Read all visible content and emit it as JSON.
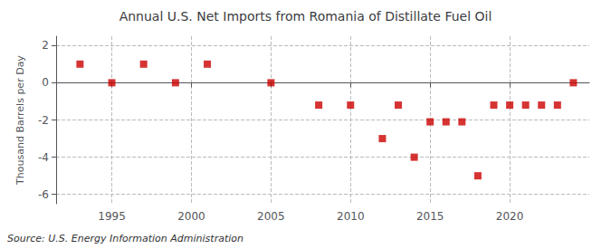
{
  "chart_data": {
    "type": "scatter",
    "title": "Annual U.S. Net Imports from Romania of Distillate Fuel Oil",
    "ylabel": "Thousand Barrels per Day",
    "source": "Source: U.S. Energy Information Administration",
    "x": [
      1993,
      1995,
      1997,
      1999,
      2001,
      2005,
      2008,
      2010,
      2012,
      2013,
      2014,
      2015,
      2016,
      2017,
      2018,
      2019,
      2020,
      2021,
      2022,
      2023,
      2024
    ],
    "values": [
      1.0,
      0.0,
      1.0,
      0.0,
      1.0,
      0.0,
      -1.2,
      -1.2,
      -3.0,
      -1.2,
      -4.0,
      -2.1,
      -2.1,
      -2.1,
      -5.0,
      -1.2,
      -1.2,
      -1.2,
      -1.2,
      -1.2,
      0.0
    ],
    "color": "#cc0000",
    "marker": "square",
    "xlim": [
      1991.5,
      2025
    ],
    "xticks": [
      1995,
      2000,
      2005,
      2010,
      2015,
      2020
    ],
    "ylim": [
      -6.5,
      2.5
    ],
    "yticks": [
      -6,
      -4,
      -2,
      0,
      2
    ],
    "grid": true
  }
}
